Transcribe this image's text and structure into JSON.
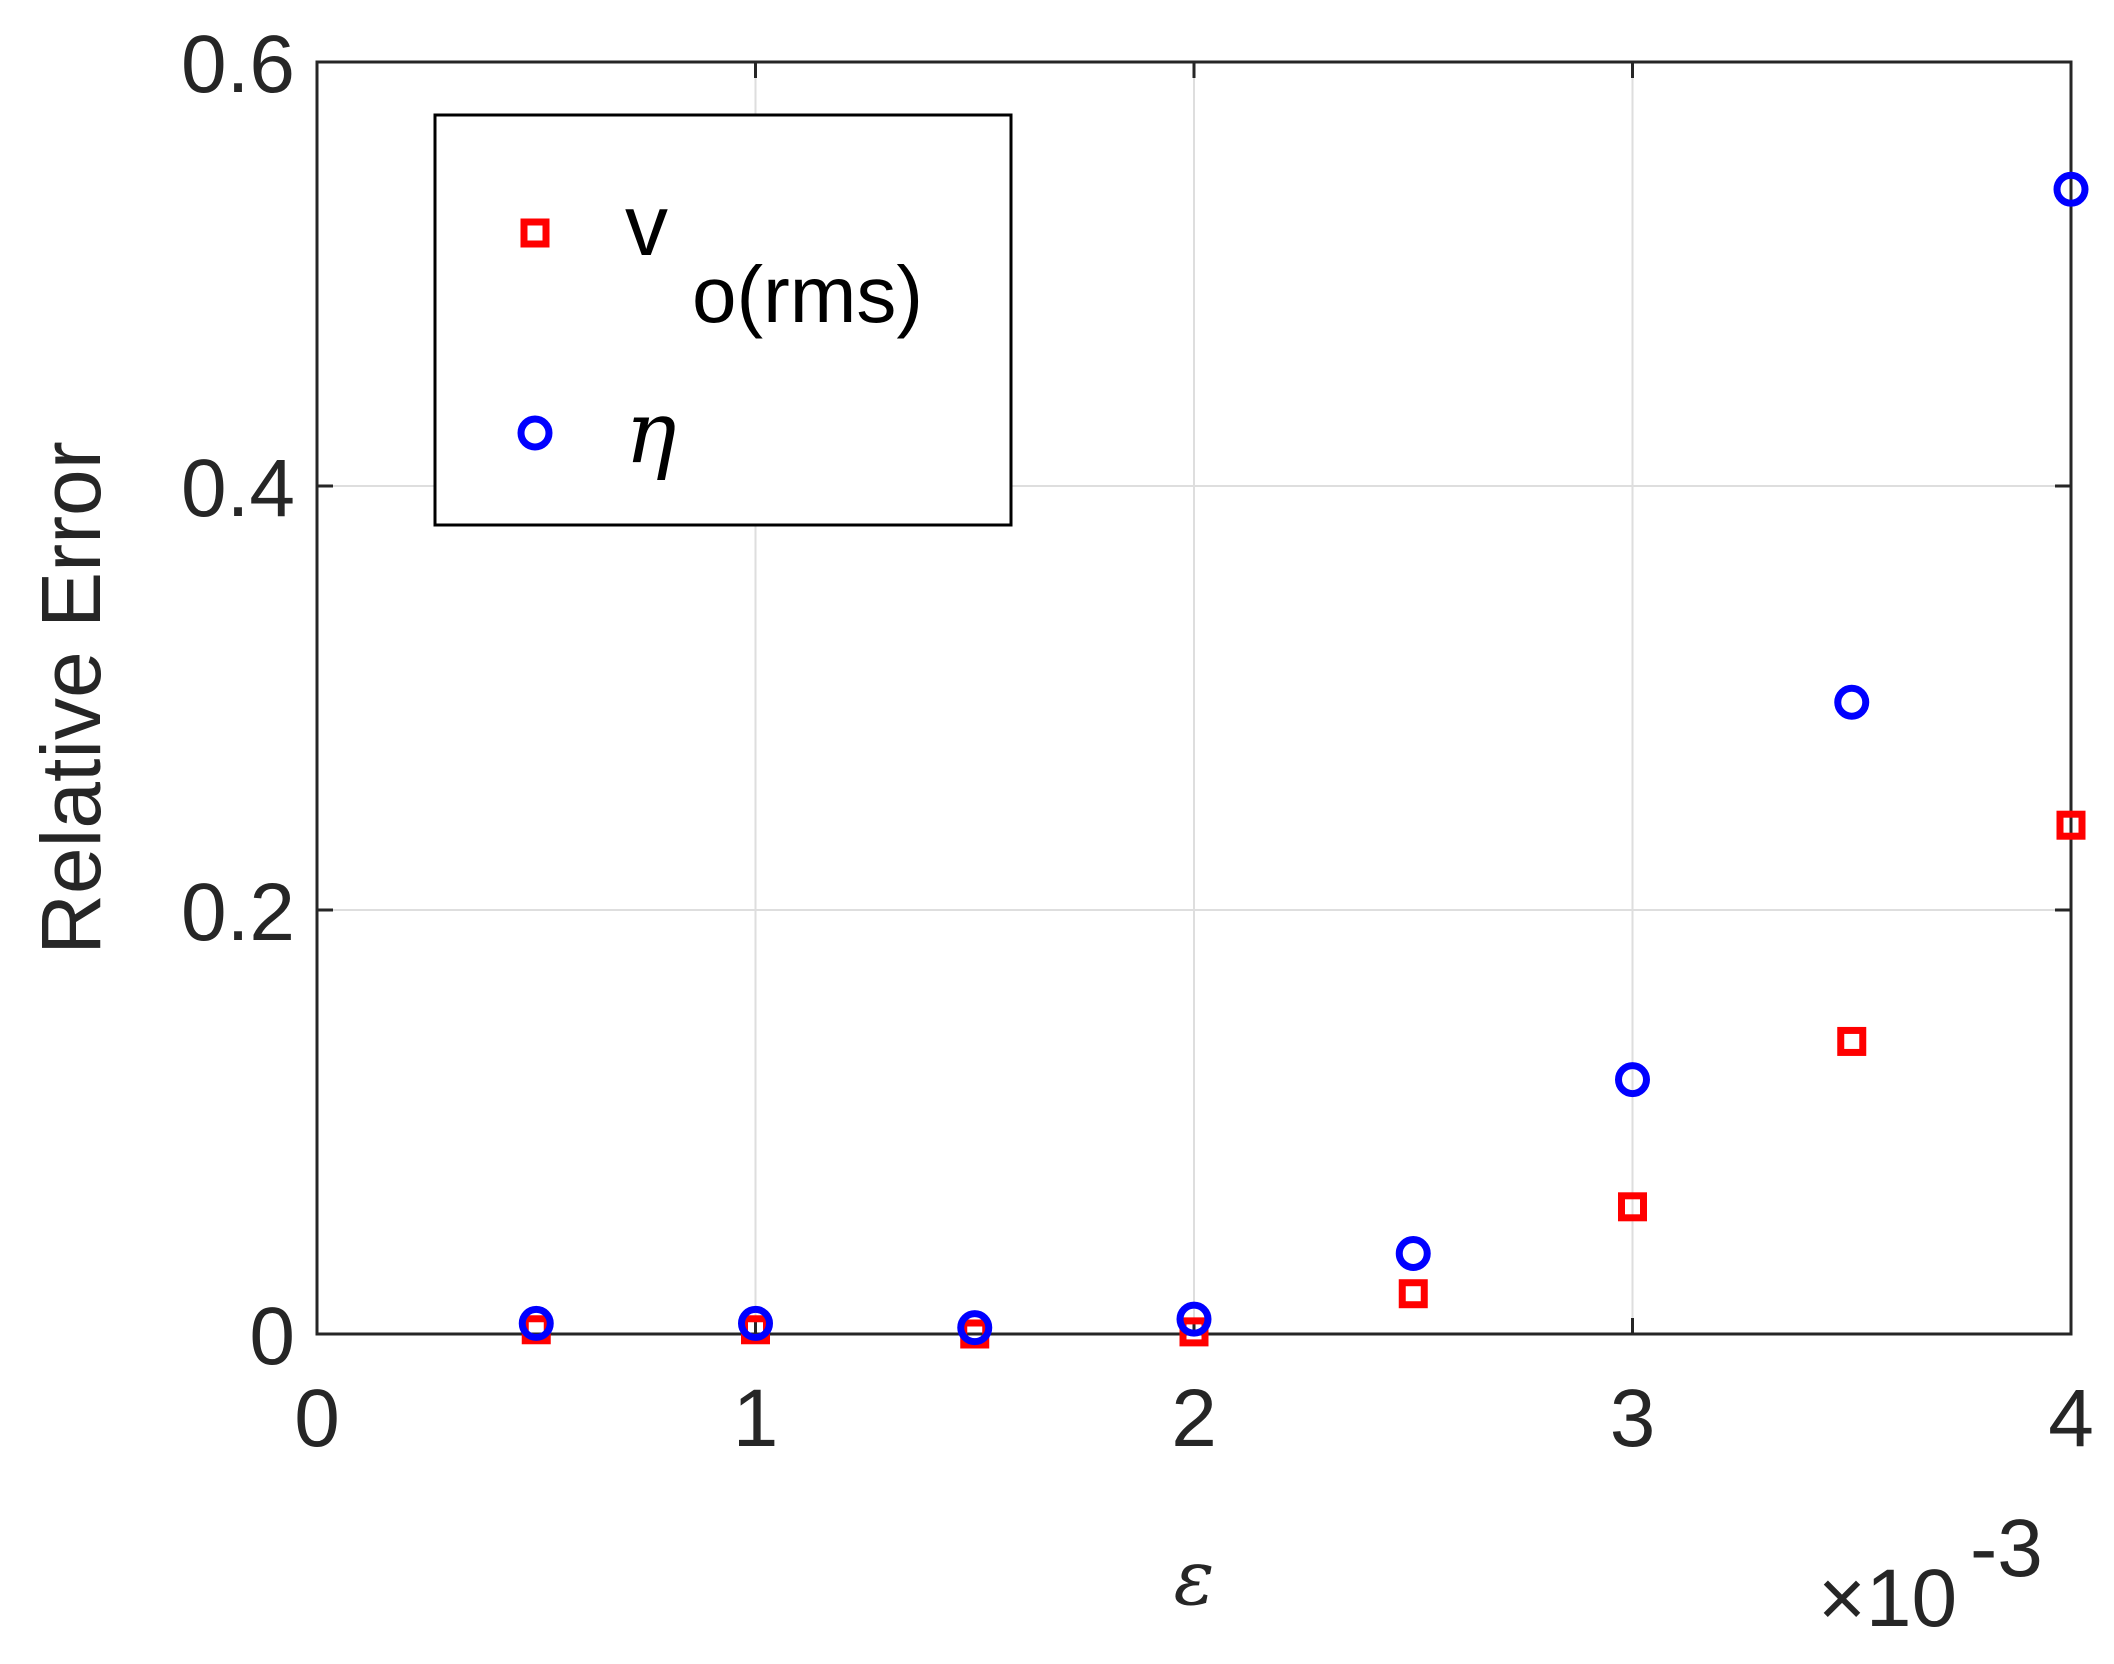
{
  "chart_data": {
    "type": "scatter",
    "xlabel": "ε",
    "ylabel": "Relative Error",
    "xlim": [
      0,
      4
    ],
    "ylim": [
      0,
      0.6
    ],
    "x_multiplier": "×10",
    "x_multiplier_exponent": "-3",
    "xticks": [
      0,
      1,
      2,
      3,
      4
    ],
    "yticks": [
      0,
      0.2,
      0.4,
      0.6
    ],
    "xtick_labels": [
      "0",
      "1",
      "2",
      "3",
      "4"
    ],
    "ytick_labels": [
      "0",
      "0.2",
      "0.4",
      "0.6"
    ],
    "grid": true,
    "legend_position": "top-left",
    "series": [
      {
        "name": "v",
        "name_subscript": "o(rms)",
        "marker": "square",
        "color": "#ff0000",
        "x": [
          0.5,
          1.0,
          1.5,
          2.0,
          2.5,
          3.0,
          3.5,
          4.0
        ],
        "y": [
          0.002,
          0.002,
          0.0,
          0.001,
          0.019,
          0.06,
          0.138,
          0.24
        ]
      },
      {
        "name": "η",
        "marker": "circle",
        "color": "#0000ff",
        "x": [
          0.5,
          1.0,
          1.5,
          2.0,
          2.5,
          3.0,
          3.5,
          4.0
        ],
        "y": [
          0.005,
          0.005,
          0.003,
          0.007,
          0.038,
          0.12,
          0.298,
          0.54
        ]
      }
    ]
  }
}
